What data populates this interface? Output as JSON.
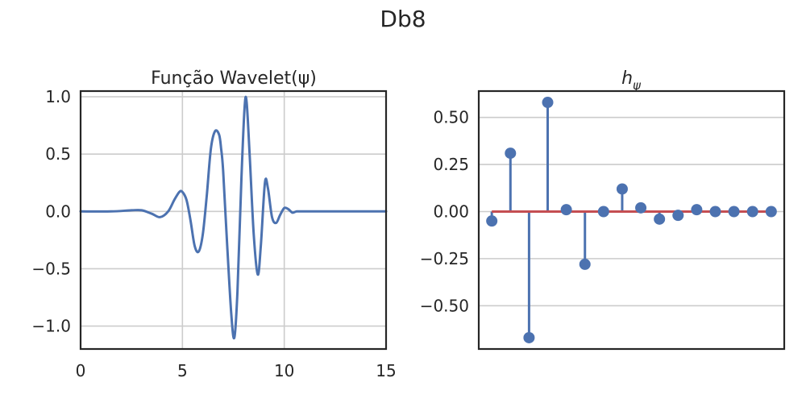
{
  "figure": {
    "suptitle": "Db8",
    "colors": {
      "line": "#4c72b0",
      "baseline": "#c44e52",
      "grid": "#cccccc",
      "frame": "#262626"
    }
  },
  "chart_data": [
    {
      "type": "line",
      "title": "Função Wavelet(ψ)",
      "xlabel": "",
      "ylabel": "",
      "xlim": [
        0,
        15
      ],
      "ylim": [
        -1.2,
        1.05
      ],
      "xticks": [
        0,
        5,
        10,
        15
      ],
      "xtick_labels": [
        "0",
        "5",
        "10",
        "15"
      ],
      "yticks": [
        -1.0,
        -0.5,
        0.0,
        0.5,
        1.0
      ],
      "ytick_labels": [
        "−1.0",
        "−0.5",
        "0.0",
        "0.5",
        "1.0"
      ],
      "grid": true,
      "series": [
        {
          "x": [
            0,
            1.5,
            2.5,
            3.0,
            3.5,
            3.9,
            4.3,
            4.6,
            4.85,
            5.0,
            5.2,
            5.4,
            5.6,
            5.8,
            6.0,
            6.2,
            6.4,
            6.6,
            6.8,
            6.9,
            7.0,
            7.2,
            7.4,
            7.55,
            7.7,
            7.9,
            8.05,
            8.15,
            8.3,
            8.5,
            8.7,
            8.85,
            9.05,
            9.2,
            9.4,
            9.6,
            9.8,
            10.0,
            10.2,
            10.4,
            10.6,
            10.9,
            11.5,
            15.0
          ],
          "y": [
            0,
            0,
            0.01,
            0.01,
            -0.02,
            -0.05,
            0.0,
            0.1,
            0.17,
            0.17,
            0.1,
            -0.08,
            -0.3,
            -0.35,
            -0.2,
            0.15,
            0.55,
            0.7,
            0.67,
            0.55,
            0.35,
            -0.3,
            -0.9,
            -1.1,
            -0.7,
            0.3,
            0.9,
            0.96,
            0.5,
            -0.2,
            -0.55,
            -0.3,
            0.25,
            0.2,
            -0.05,
            -0.1,
            -0.03,
            0.03,
            0.02,
            -0.01,
            0.0,
            0.0,
            0.0,
            0.0
          ]
        }
      ]
    },
    {
      "type": "stem",
      "title": "hψ",
      "title_main": "h",
      "title_sub": "ψ",
      "xlabel": "",
      "ylabel": "",
      "xlim": [
        -0.7,
        15.7
      ],
      "ylim": [
        -0.73,
        0.64
      ],
      "xticks": [],
      "yticks": [
        -0.5,
        -0.25,
        0.0,
        0.25,
        0.5
      ],
      "ytick_labels": [
        "−0.50",
        "−0.25",
        "0.00",
        "0.25",
        "0.50"
      ],
      "grid": true,
      "baseline": 0,
      "x": [
        0,
        1,
        2,
        3,
        4,
        5,
        6,
        7,
        8,
        9,
        10,
        11,
        12,
        13,
        14,
        15
      ],
      "values": [
        -0.05,
        0.31,
        -0.67,
        0.58,
        0.01,
        -0.28,
        0.0,
        0.12,
        0.02,
        -0.04,
        -0.02,
        0.01,
        0.0,
        0.0,
        0.0,
        0.0
      ]
    }
  ]
}
